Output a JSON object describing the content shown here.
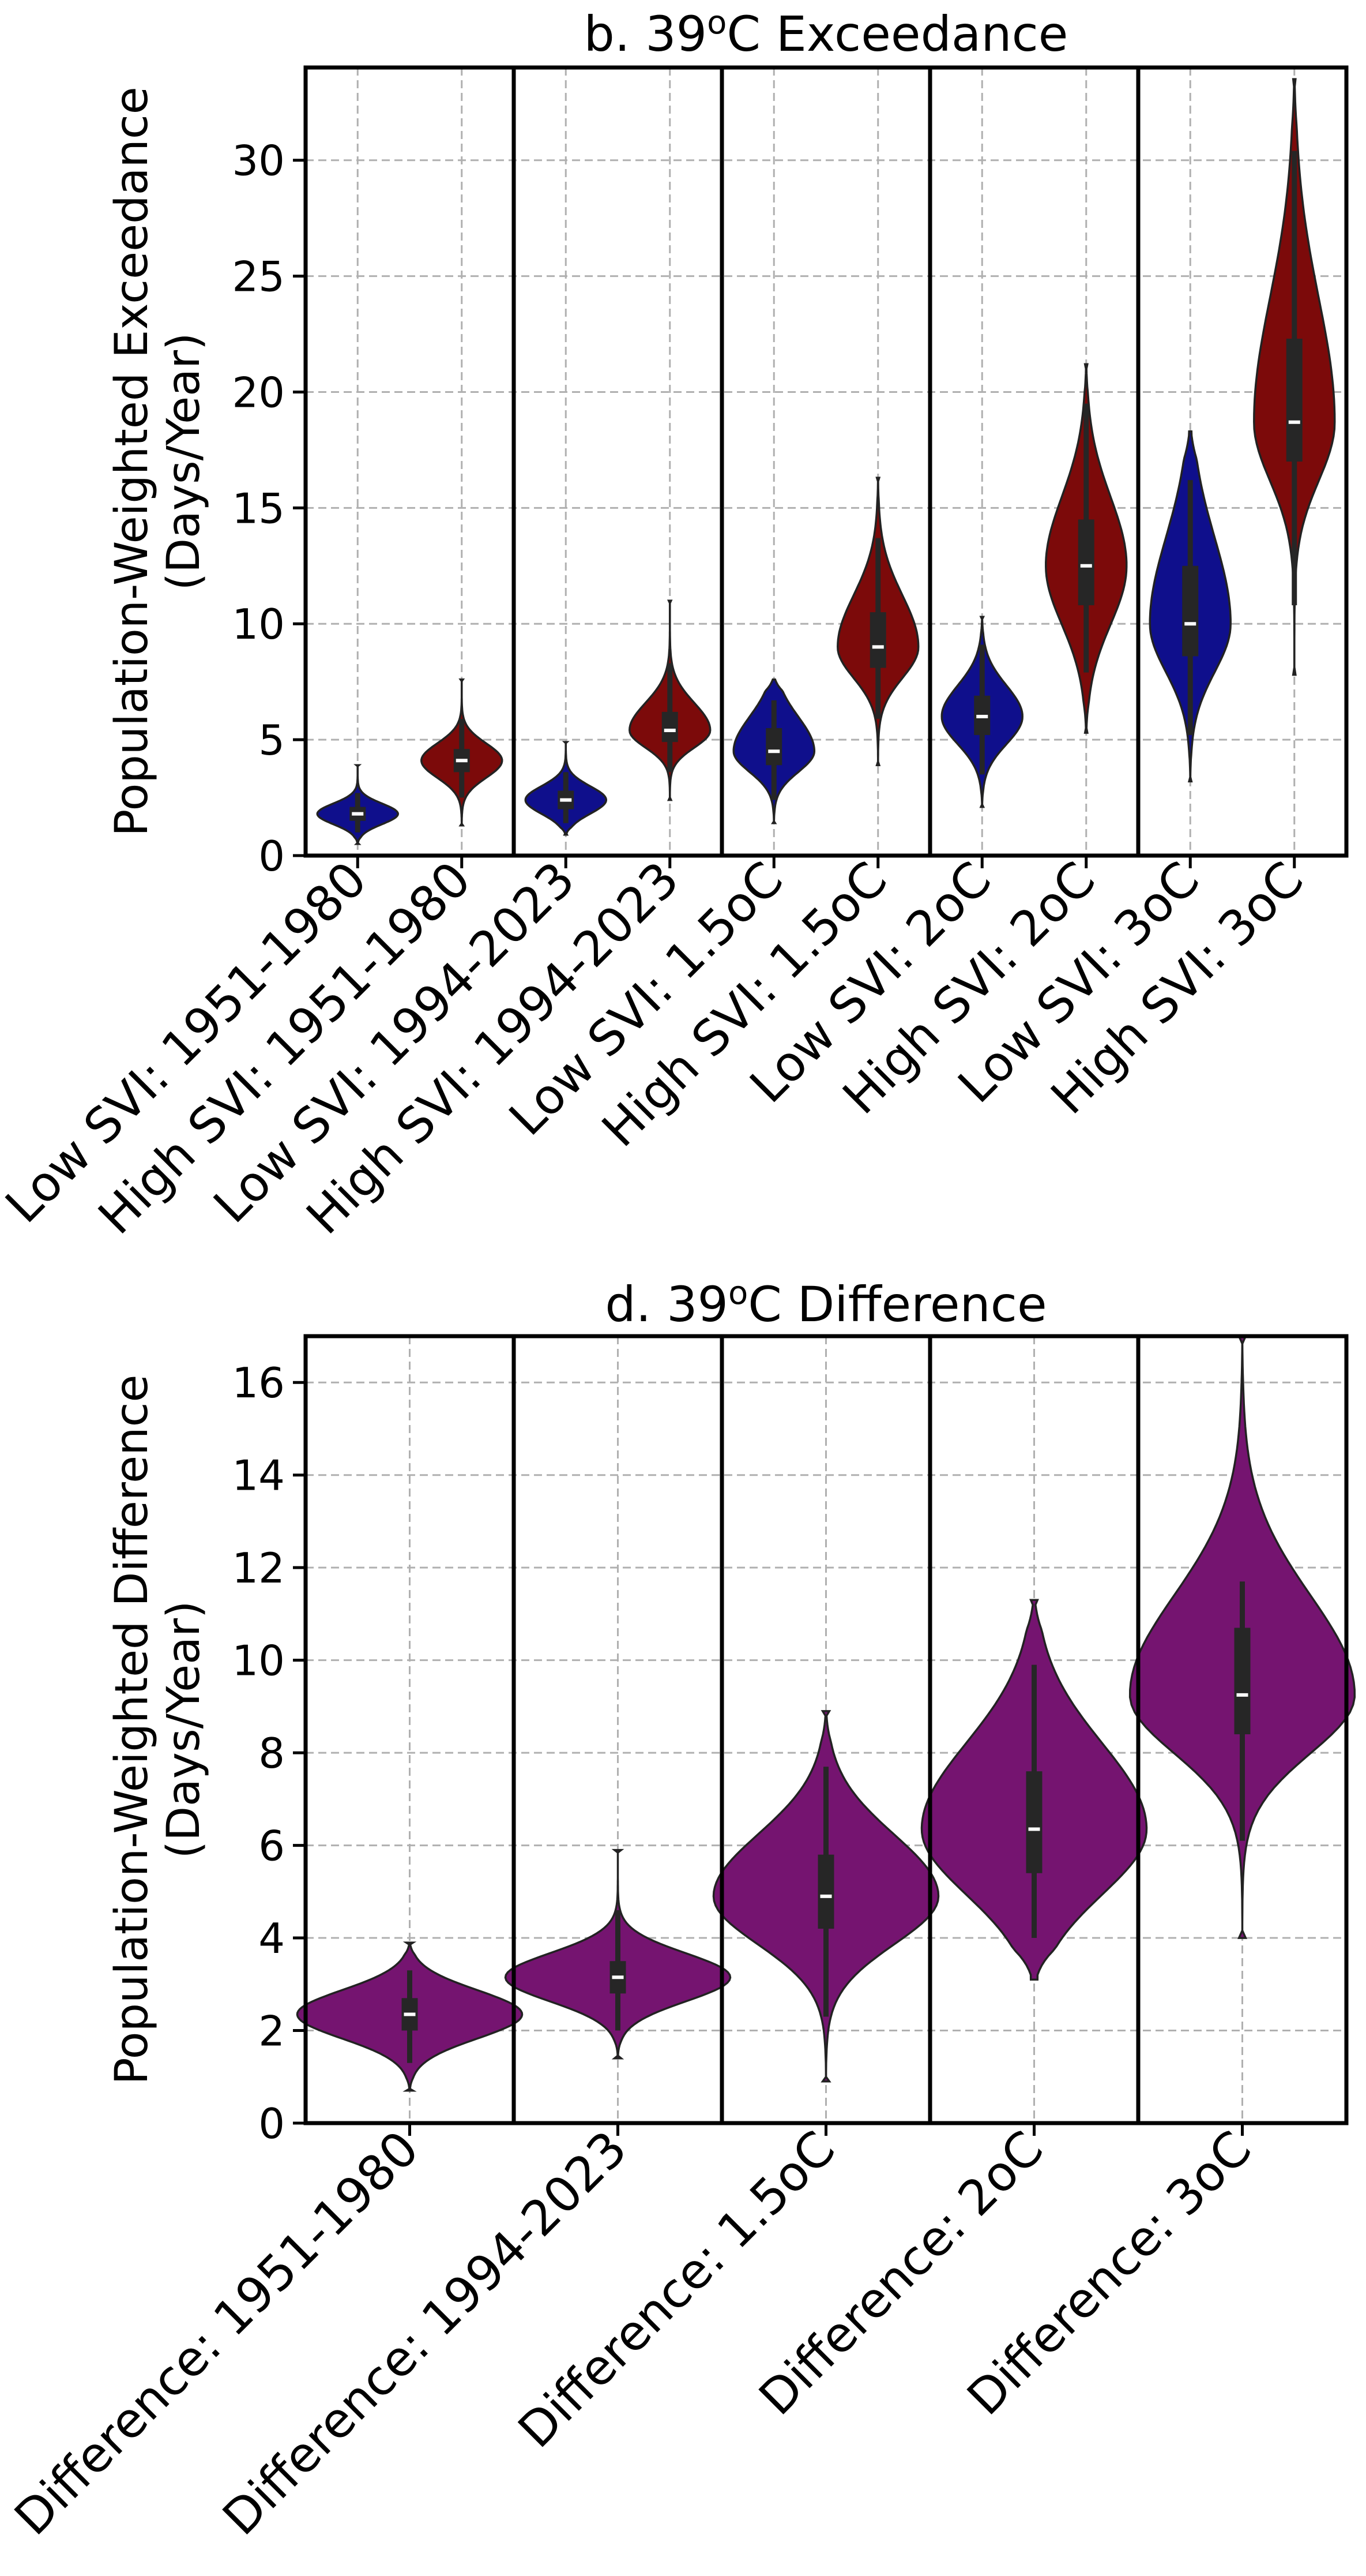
{
  "colors": {
    "low_svi": "#0f0f8c",
    "high_svi": "#7c0a0a",
    "difference": "#751470",
    "edge": "#222222",
    "box": "#262626",
    "median": "#ffffff",
    "grid": "#b0b0b0"
  },
  "chart_data": [
    {
      "type": "violin",
      "title_prefix": "b. 39",
      "title_sup": "o",
      "title_suffix": "C Exceedance",
      "ylabel_line1": "Population-Weighted Exceedance",
      "ylabel_line2": "(Days/Year)",
      "ylim": [
        0,
        34
      ],
      "yticks": [
        0,
        5,
        10,
        15,
        20,
        25,
        30
      ],
      "grid": true,
      "group_separators": [
        2,
        4,
        6,
        8
      ],
      "categories": [
        {
          "label": "Low SVI: 1951-1980",
          "color": "low_svi",
          "median": 1.8,
          "q1": 1.5,
          "q3": 2.1,
          "whisker_low": 1.0,
          "whisker_high": 2.7,
          "min": 0.5,
          "max": 3.9
        },
        {
          "label": "High SVI: 1951-1980",
          "color": "high_svi",
          "median": 4.1,
          "q1": 3.6,
          "q3": 4.6,
          "whisker_low": 2.5,
          "whisker_high": 5.9,
          "min": 1.3,
          "max": 7.6
        },
        {
          "label": "Low SVI: 1994-2023",
          "color": "low_svi",
          "median": 2.4,
          "q1": 2.0,
          "q3": 2.8,
          "whisker_low": 1.4,
          "whisker_high": 3.6,
          "min": 0.9,
          "max": 4.9
        },
        {
          "label": "High SVI: 1994-2023",
          "color": "high_svi",
          "median": 5.4,
          "q1": 4.9,
          "q3": 6.2,
          "whisker_low": 3.6,
          "whisker_high": 8.3,
          "min": 2.4,
          "max": 11.0
        },
        {
          "label": "Low SVI: 1.5oC",
          "color": "low_svi",
          "median": 4.5,
          "q1": 3.9,
          "q3": 5.5,
          "whisker_low": 2.4,
          "whisker_high": 6.7,
          "min": 1.4,
          "max": 7.6
        },
        {
          "label": "High SVI: 1.5oC",
          "color": "high_svi",
          "median": 9.0,
          "q1": 8.1,
          "q3": 10.5,
          "whisker_low": 5.9,
          "whisker_high": 13.7,
          "min": 3.9,
          "max": 16.3
        },
        {
          "label": "Low SVI: 2oC",
          "color": "low_svi",
          "median": 6.0,
          "q1": 5.2,
          "q3": 6.9,
          "whisker_low": 3.5,
          "whisker_high": 9.1,
          "min": 2.1,
          "max": 10.3
        },
        {
          "label": "High SVI: 2oC",
          "color": "high_svi",
          "median": 12.5,
          "q1": 10.8,
          "q3": 14.5,
          "whisker_low": 7.9,
          "whisker_high": 19.5,
          "min": 5.3,
          "max": 21.2
        },
        {
          "label": "Low SVI: 3oC",
          "color": "low_svi",
          "median": 10.0,
          "q1": 8.6,
          "q3": 12.5,
          "whisker_low": 5.2,
          "whisker_high": 16.2,
          "min": 3.2,
          "max": 18.3
        },
        {
          "label": "High SVI: 3oC",
          "color": "high_svi",
          "median": 18.7,
          "q1": 17.0,
          "q3": 22.3,
          "whisker_low": 10.8,
          "whisker_high": 30.4,
          "min": 7.8,
          "max": 33.5
        }
      ]
    },
    {
      "type": "violin",
      "title_prefix": "d. 39",
      "title_sup": "o",
      "title_suffix": "C Difference",
      "ylabel_line1": "Population-Weighted Difference",
      "ylabel_line2": "(Days/Year)",
      "ylim": [
        0,
        17
      ],
      "yticks": [
        0,
        2,
        4,
        6,
        8,
        10,
        12,
        14,
        16
      ],
      "grid": true,
      "group_separators": [
        1,
        2,
        3,
        4
      ],
      "categories": [
        {
          "label": "Difference: 1951-1980",
          "color": "difference",
          "median": 2.35,
          "q1": 2.0,
          "q3": 2.7,
          "whisker_low": 1.3,
          "whisker_high": 3.3,
          "min": 0.7,
          "max": 3.9
        },
        {
          "label": "Difference: 1994-2023",
          "color": "difference",
          "median": 3.15,
          "q1": 2.8,
          "q3": 3.5,
          "whisker_low": 2.0,
          "whisker_high": 4.6,
          "min": 1.4,
          "max": 5.9
        },
        {
          "label": "Difference: 1.5oC",
          "color": "difference",
          "median": 4.9,
          "q1": 4.2,
          "q3": 5.8,
          "whisker_low": 2.3,
          "whisker_high": 7.7,
          "min": 0.9,
          "max": 8.9
        },
        {
          "label": "Difference: 2oC",
          "color": "difference",
          "median": 6.35,
          "q1": 5.4,
          "q3": 7.6,
          "whisker_low": 4.0,
          "whisker_high": 9.9,
          "min": 3.1,
          "max": 11.3
        },
        {
          "label": "Difference: 3oC",
          "color": "difference",
          "median": 9.25,
          "q1": 8.4,
          "q3": 10.7,
          "whisker_low": 6.1,
          "whisker_high": 11.7,
          "min": 4.0,
          "max": 17.0
        }
      ]
    }
  ]
}
